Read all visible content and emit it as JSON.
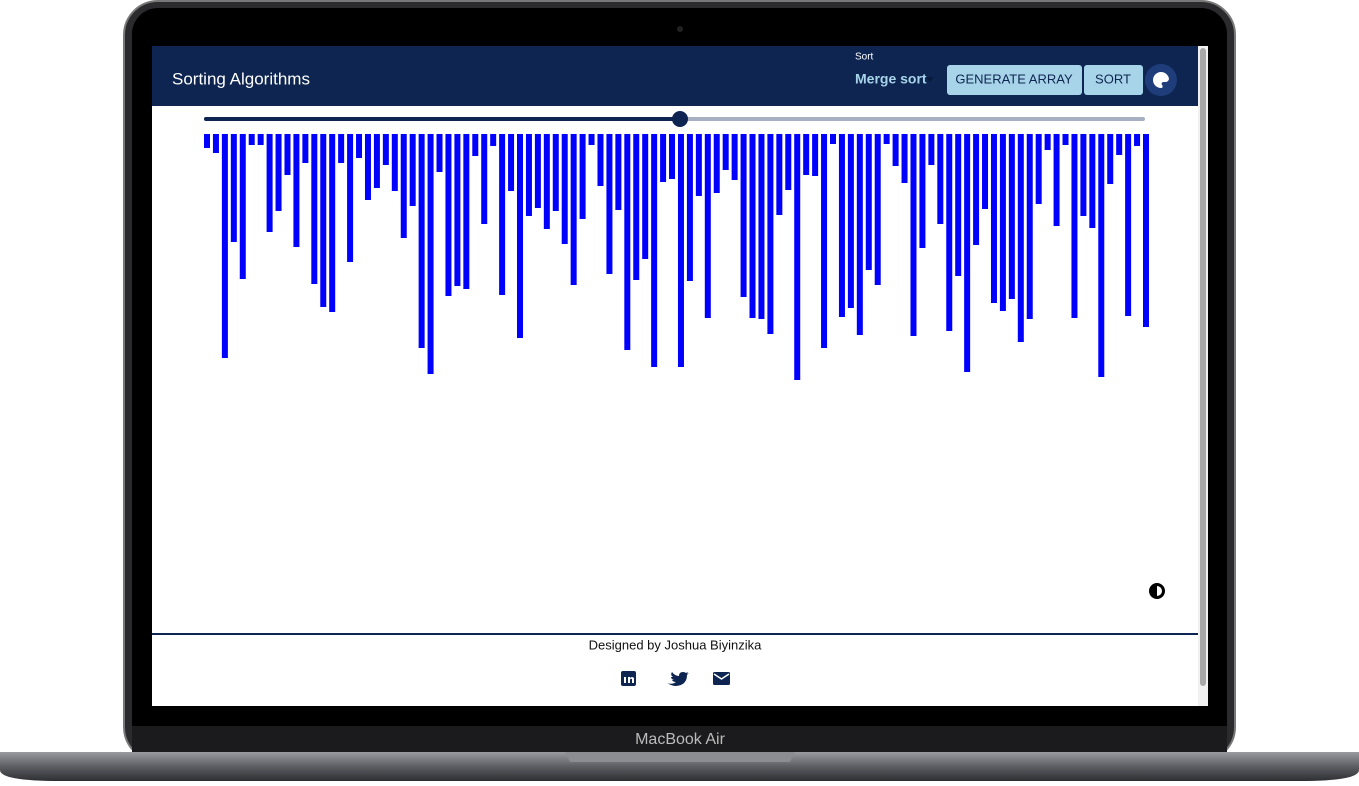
{
  "header": {
    "title": "Sorting Algorithms",
    "select_label": "Sort",
    "select_value": "Merge sort",
    "buttons": [
      "GENERATE ARRAY",
      "SORT"
    ]
  },
  "array": [
    14,
    19,
    224,
    108,
    145,
    11,
    11,
    98,
    77,
    41,
    113,
    29,
    150,
    173,
    178,
    29,
    128,
    24,
    66,
    54,
    31,
    57,
    104,
    72,
    214,
    240,
    38,
    162,
    152,
    155,
    22,
    90,
    12,
    161,
    57,
    204,
    82,
    74,
    95,
    77,
    110,
    151,
    85,
    11,
    52,
    140,
    76,
    216,
    146,
    125,
    233,
    48,
    45,
    233,
    147,
    62,
    184,
    59,
    36,
    46,
    163,
    184,
    185,
    200,
    81,
    56,
    246,
    41,
    42,
    214,
    10,
    183,
    174,
    201,
    136,
    151,
    10,
    32,
    49,
    202,
    114,
    31,
    90,
    197,
    142,
    238,
    111,
    75,
    169,
    177,
    165,
    208,
    185,
    70,
    16,
    92,
    11,
    184,
    82,
    94,
    243,
    50,
    21,
    182,
    12,
    193
  ],
  "footer": {
    "credit": "Designed by Joshua Biyinzika"
  },
  "device": {
    "label": "MacBook Air"
  }
}
